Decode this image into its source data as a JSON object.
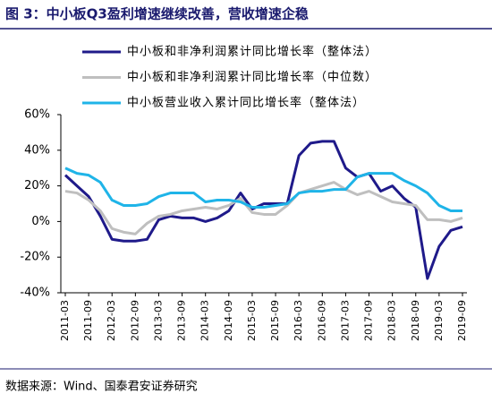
{
  "chart_data": {
    "type": "line",
    "title": "图 3：中小板Q3盈利增速继续改善，营收增速企稳",
    "source": "数据来源：Wind、国泰君安证券研究",
    "categories": [
      "2011-03",
      null,
      "2011-09",
      null,
      "2012-03",
      null,
      "2012-09",
      null,
      "2013-03",
      null,
      "2013-09",
      null,
      "2014-03",
      null,
      "2014-09",
      null,
      "2015-03",
      null,
      "2015-09",
      null,
      "2016-03",
      null,
      "2016-09",
      null,
      "2017-03",
      null,
      "2017-09",
      null,
      "2018-03",
      null,
      "2018-09",
      null,
      "2019-03",
      null,
      "2019-09"
    ],
    "series": [
      {
        "name": "中小板和非净利润累计同比增长率（整体法）",
        "color": "#1f1a8a",
        "values": [
          26,
          20,
          14,
          3,
          -10,
          -11,
          -11,
          -10,
          1,
          3,
          2,
          2,
          0,
          2,
          6,
          16,
          7,
          10,
          10,
          10,
          37,
          44,
          45,
          45,
          30,
          25,
          27,
          17,
          20,
          13,
          8,
          -32,
          -14,
          -5,
          -3
        ]
      },
      {
        "name": "中小板和非净利润累计同比增长率（中位数）",
        "color": "#bfbfbf",
        "values": [
          17,
          16,
          12,
          6,
          -4,
          -6,
          -7,
          -1,
          3,
          4,
          6,
          7,
          8,
          7,
          9,
          13,
          5,
          4,
          4,
          9,
          16,
          18,
          20,
          22,
          18,
          15,
          17,
          14,
          11,
          10,
          9,
          1,
          1,
          0,
          2
        ]
      },
      {
        "name": "中小板营业收入累计同比增长率（整体法）",
        "color": "#1fb4e8",
        "values": [
          30,
          27,
          26,
          22,
          12,
          9,
          9,
          10,
          14,
          16,
          16,
          16,
          11,
          12,
          12,
          11,
          8,
          8,
          9,
          10,
          16,
          17,
          17,
          18,
          18,
          25,
          27,
          27,
          27,
          23,
          20,
          16,
          9,
          6,
          6
        ]
      }
    ],
    "ylim": [
      -40,
      60
    ],
    "yticks": [
      {
        "value": -40,
        "label": "-40%"
      },
      {
        "value": -20,
        "label": "-20%"
      },
      {
        "value": 0,
        "label": "0%"
      },
      {
        "value": 20,
        "label": "20%"
      },
      {
        "value": 40,
        "label": "40%"
      },
      {
        "value": 60,
        "label": "60%"
      }
    ]
  }
}
